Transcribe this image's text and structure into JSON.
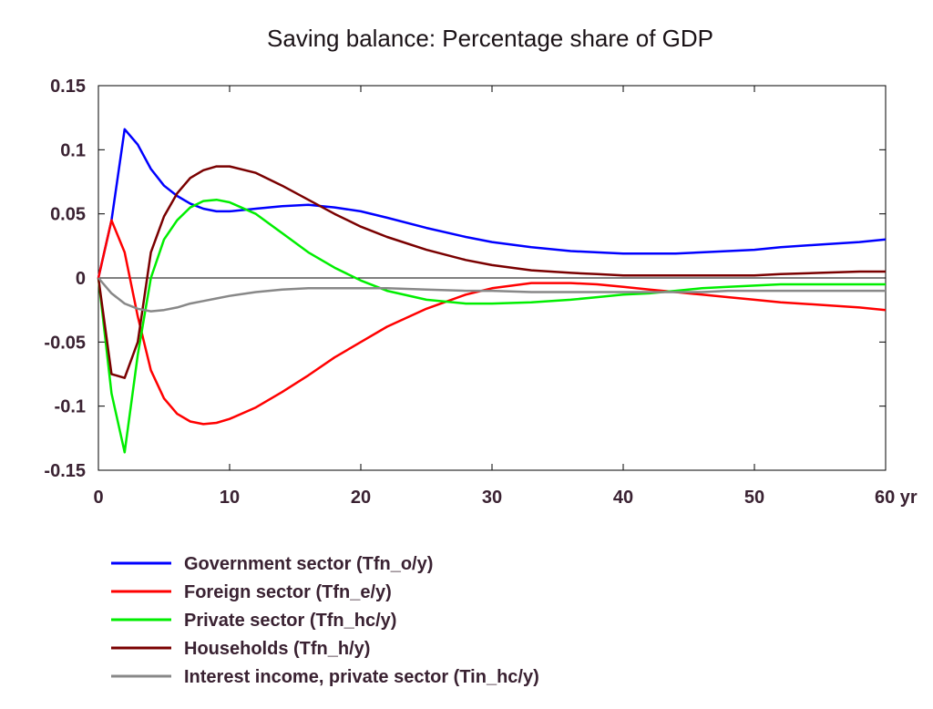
{
  "chart_data": {
    "type": "line",
    "title": "Saving balance: Percentage share of GDP",
    "xlabel": "",
    "ylabel": "",
    "xlim": [
      0,
      60
    ],
    "ylim": [
      -0.15,
      0.15
    ],
    "x_ticks": [
      "0",
      "10",
      "20",
      "30",
      "40",
      "50",
      "60 yr"
    ],
    "y_ticks": [
      "0.15",
      "0.1",
      "0.05",
      "0",
      "-0.05",
      "-0.1",
      "-0.15"
    ],
    "grid": false,
    "zero_line": true,
    "legend_position": "bottom",
    "x": [
      0,
      1,
      2,
      3,
      4,
      5,
      6,
      7,
      8,
      9,
      10,
      12,
      14,
      16,
      18,
      20,
      22,
      25,
      28,
      30,
      33,
      36,
      38,
      40,
      42,
      44,
      46,
      48,
      50,
      52,
      55,
      58,
      60
    ],
    "series": [
      {
        "name": "Government sector (Tfn_o/y)",
        "color": "#0000ff",
        "values": [
          0.0,
          0.045,
          0.116,
          0.104,
          0.085,
          0.072,
          0.064,
          0.058,
          0.054,
          0.052,
          0.052,
          0.054,
          0.056,
          0.057,
          0.055,
          0.052,
          0.047,
          0.039,
          0.032,
          0.028,
          0.024,
          0.021,
          0.02,
          0.019,
          0.019,
          0.019,
          0.02,
          0.021,
          0.022,
          0.024,
          0.026,
          0.028,
          0.03
        ]
      },
      {
        "name": "Foreign sector (Tfn_e/y)",
        "color": "#ff0000",
        "values": [
          0.0,
          0.045,
          0.02,
          -0.03,
          -0.072,
          -0.094,
          -0.106,
          -0.112,
          -0.114,
          -0.113,
          -0.11,
          -0.101,
          -0.089,
          -0.076,
          -0.062,
          -0.05,
          -0.038,
          -0.024,
          -0.013,
          -0.008,
          -0.004,
          -0.004,
          -0.005,
          -0.007,
          -0.009,
          -0.011,
          -0.013,
          -0.015,
          -0.017,
          -0.019,
          -0.021,
          -0.023,
          -0.025
        ]
      },
      {
        "name": "Private sector (Tfn_hc/y)",
        "color": "#00ee00",
        "values": [
          0.0,
          -0.09,
          -0.136,
          -0.06,
          0.0,
          0.03,
          0.045,
          0.055,
          0.06,
          0.061,
          0.059,
          0.05,
          0.035,
          0.02,
          0.008,
          -0.002,
          -0.01,
          -0.017,
          -0.02,
          -0.02,
          -0.019,
          -0.017,
          -0.015,
          -0.013,
          -0.012,
          -0.01,
          -0.008,
          -0.007,
          -0.006,
          -0.005,
          -0.005,
          -0.005,
          -0.005
        ]
      },
      {
        "name": "Households (Tfn_h/y)",
        "color": "#7a0000",
        "values": [
          0.0,
          -0.075,
          -0.078,
          -0.05,
          0.02,
          0.048,
          0.066,
          0.078,
          0.084,
          0.087,
          0.087,
          0.082,
          0.072,
          0.061,
          0.05,
          0.04,
          0.032,
          0.022,
          0.014,
          0.01,
          0.006,
          0.004,
          0.003,
          0.002,
          0.002,
          0.002,
          0.002,
          0.002,
          0.002,
          0.003,
          0.004,
          0.005,
          0.005
        ]
      },
      {
        "name": "Interest income, private sector (Tin_hc/y)",
        "color": "#888888",
        "values": [
          0.0,
          -0.012,
          -0.02,
          -0.024,
          -0.026,
          -0.025,
          -0.023,
          -0.02,
          -0.018,
          -0.016,
          -0.014,
          -0.011,
          -0.009,
          -0.008,
          -0.008,
          -0.008,
          -0.008,
          -0.009,
          -0.01,
          -0.01,
          -0.011,
          -0.011,
          -0.011,
          -0.011,
          -0.011,
          -0.011,
          -0.011,
          -0.01,
          -0.01,
          -0.01,
          -0.01,
          -0.01,
          -0.01
        ]
      }
    ]
  }
}
